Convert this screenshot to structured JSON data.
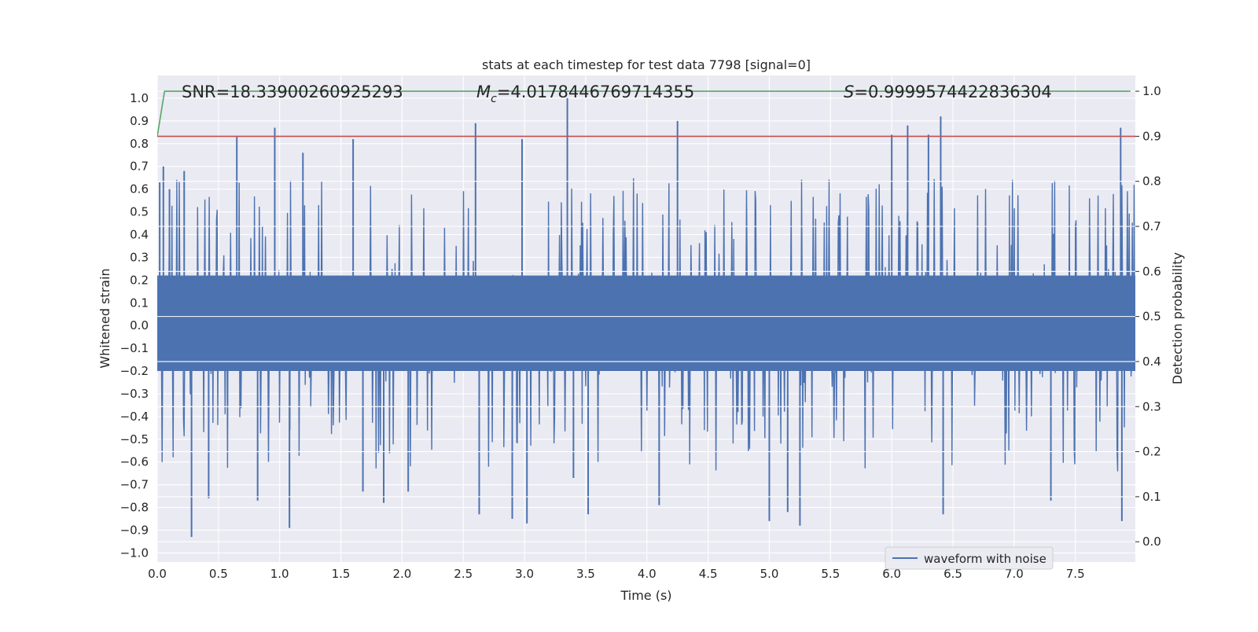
{
  "chart_data": {
    "type": "line",
    "title": "stats at each timestep for test data 7798 [signal=0]",
    "xlabel": "Time (s)",
    "ylabel_left": "Whitened strain",
    "ylabel_right": "Detection probability",
    "xlim": [
      0.0,
      7.99
    ],
    "ylim_left": [
      -1.04,
      1.1
    ],
    "ylim_right": [
      -0.045,
      1.035
    ],
    "x_ticks": [
      "0.0",
      "0.5",
      "1.0",
      "1.5",
      "2.0",
      "2.5",
      "3.0",
      "3.5",
      "4.0",
      "4.5",
      "5.0",
      "5.5",
      "6.0",
      "6.5",
      "7.0",
      "7.5"
    ],
    "x_tick_values": [
      0.0,
      0.5,
      1.0,
      1.5,
      2.0,
      2.5,
      3.0,
      3.5,
      4.0,
      4.5,
      5.0,
      5.5,
      6.0,
      6.5,
      7.0,
      7.5
    ],
    "y_left_ticks": [
      "1.0",
      "0.9",
      "0.8",
      "0.7",
      "0.6",
      "0.5",
      "0.4",
      "0.3",
      "0.2",
      "0.1",
      "0.0",
      "−0.1",
      "−0.2",
      "−0.3",
      "−0.4",
      "−0.5",
      "−0.6",
      "−0.7",
      "−0.8",
      "−0.9",
      "−1.0"
    ],
    "y_left_tick_values": [
      1.0,
      0.9,
      0.8,
      0.7,
      0.6,
      0.5,
      0.4,
      0.3,
      0.2,
      0.1,
      0.0,
      -0.1,
      -0.2,
      -0.3,
      -0.4,
      -0.5,
      -0.6,
      -0.7,
      -0.8,
      -0.9,
      -1.0
    ],
    "y_right_ticks": [
      "1.0",
      "0.9",
      "0.8",
      "0.7",
      "0.6",
      "0.5",
      "0.4",
      "0.3",
      "0.2",
      "0.1",
      "0.0"
    ],
    "y_right_tick_values": [
      1.0,
      0.9,
      0.8,
      0.7,
      0.6,
      0.5,
      0.4,
      0.3,
      0.2,
      0.1,
      0.0
    ],
    "annotations": {
      "snr": "SNR=18.33900260925293",
      "mc_symbol": "M",
      "mc_sub": "c",
      "mc_value": "=4.0178446769714355",
      "s_symbol": "S",
      "s_value": "=0.9999574422836304"
    },
    "series": [
      {
        "name": "waveform with noise",
        "axis": "left",
        "color": "#4c72b0",
        "style": "noise",
        "envelope_approx": [
          -0.93,
          1.0
        ],
        "spikes": [
          {
            "x": 0.02,
            "y": 0.63
          },
          {
            "x": 0.05,
            "y": 0.7
          },
          {
            "x": 0.1,
            "y": 0.6
          },
          {
            "x": 0.22,
            "y": 0.68
          },
          {
            "x": 0.28,
            "y": -0.93
          },
          {
            "x": 0.42,
            "y": -0.76
          },
          {
            "x": 0.65,
            "y": 0.83
          },
          {
            "x": 0.82,
            "y": -0.77
          },
          {
            "x": 0.96,
            "y": 0.87
          },
          {
            "x": 1.08,
            "y": -0.89
          },
          {
            "x": 1.19,
            "y": 0.76
          },
          {
            "x": 1.6,
            "y": 0.82
          },
          {
            "x": 1.68,
            "y": -0.73
          },
          {
            "x": 1.85,
            "y": -0.78
          },
          {
            "x": 2.05,
            "y": -0.73
          },
          {
            "x": 2.6,
            "y": 0.89
          },
          {
            "x": 2.63,
            "y": -0.83
          },
          {
            "x": 2.9,
            "y": -0.85
          },
          {
            "x": 2.98,
            "y": 0.82
          },
          {
            "x": 3.02,
            "y": -0.87
          },
          {
            "x": 3.35,
            "y": 1.0
          },
          {
            "x": 3.4,
            "y": -0.67
          },
          {
            "x": 3.52,
            "y": -0.83
          },
          {
            "x": 4.1,
            "y": -0.79
          },
          {
            "x": 4.25,
            "y": 0.9
          },
          {
            "x": 5.0,
            "y": -0.86
          },
          {
            "x": 5.15,
            "y": -0.82
          },
          {
            "x": 5.25,
            "y": -0.88
          },
          {
            "x": 6.0,
            "y": 0.84
          },
          {
            "x": 6.13,
            "y": 0.88
          },
          {
            "x": 6.3,
            "y": 0.84
          },
          {
            "x": 6.4,
            "y": 0.92
          },
          {
            "x": 6.42,
            "y": -0.83
          },
          {
            "x": 7.3,
            "y": -0.77
          },
          {
            "x": 7.87,
            "y": 0.87
          },
          {
            "x": 7.88,
            "y": -0.86
          }
        ]
      },
      {
        "name": "detection probability",
        "axis": "right",
        "color": "#55a868",
        "x": [
          0.0,
          0.06,
          7.95
        ],
        "y": [
          0.9,
          1.0,
          1.0
        ]
      },
      {
        "name": "threshold",
        "axis": "right",
        "color": "#c44e52",
        "x": [
          0.0,
          7.99
        ],
        "y": [
          0.9,
          0.9
        ]
      }
    ],
    "legend": {
      "entries": [
        "waveform with noise"
      ],
      "placement": "lower-right"
    },
    "grid": true
  }
}
